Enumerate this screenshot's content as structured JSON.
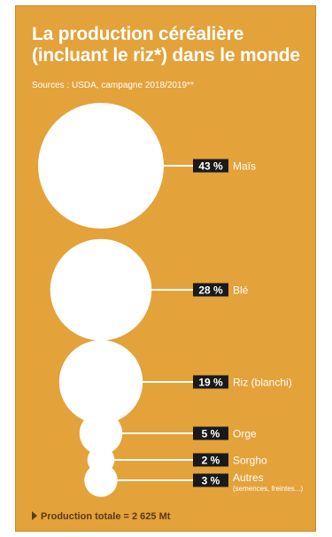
{
  "title_line1": "La production céréalière",
  "title_line2": "(incluant le riz*) dans le monde",
  "sources": "Sources : USDA, campagne 2018/2019**",
  "total": "Production totale = 2 625 Mt",
  "colors": {
    "background": "#e3a23a",
    "bubble": "#ffffff",
    "label_box": "#1a1a1a"
  },
  "chart_data": {
    "type": "bubble",
    "unit": "%",
    "items": [
      {
        "name": "Maïs",
        "value": 43,
        "label": "43 %"
      },
      {
        "name": "Blé",
        "value": 28,
        "label": "28 %"
      },
      {
        "name": "Riz (blanchi)",
        "value": 19,
        "label": "19 %"
      },
      {
        "name": "Orge",
        "value": 5,
        "label": "5 %"
      },
      {
        "name": "Sorgho",
        "value": 2,
        "label": "2 %"
      },
      {
        "name": "Autres",
        "value": 3,
        "label": "3 %",
        "note": "(semences, freintes...)"
      }
    ]
  }
}
